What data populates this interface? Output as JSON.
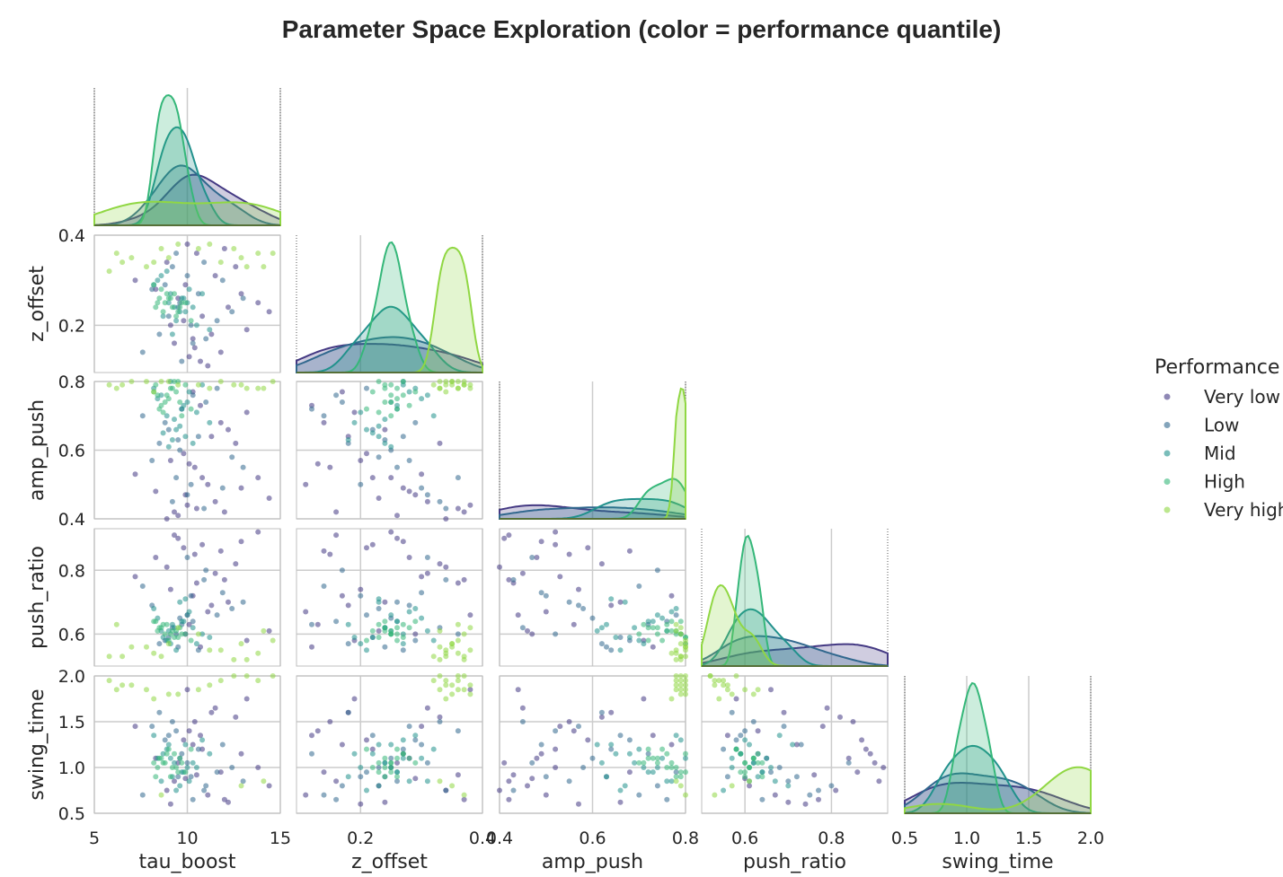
{
  "chart_data": {
    "type": "scatter",
    "kind": "pairplot-corner",
    "title": "Parameter Space Exploration (color = performance quantile)",
    "variables": [
      {
        "name": "tau_boost",
        "lim": [
          5,
          15
        ],
        "ticks": [
          5,
          10,
          15
        ],
        "tick_labels": [
          "5",
          "10",
          "15"
        ]
      },
      {
        "name": "z_offset",
        "lim": [
          0.095,
          0.4
        ],
        "ticks": [
          0.2,
          0.4
        ],
        "tick_labels": [
          "0.2",
          "0.4"
        ]
      },
      {
        "name": "amp_push",
        "lim": [
          0.4,
          0.8
        ],
        "ticks": [
          0.4,
          0.6,
          0.8
        ],
        "tick_labels": [
          "0.4",
          "0.6",
          "0.8"
        ]
      },
      {
        "name": "push_ratio",
        "lim": [
          0.5,
          0.93
        ],
        "ticks": [
          0.6,
          0.8
        ],
        "tick_labels": [
          "0.6",
          "0.8"
        ]
      },
      {
        "name": "swing_time",
        "lim": [
          0.5,
          2.0
        ],
        "ticks": [
          0.5,
          1.0,
          1.5,
          2.0
        ],
        "tick_labels": [
          "0.5",
          "1.0",
          "1.5",
          "2.0"
        ]
      }
    ],
    "y_ticks": {
      "z_offset": {
        "ticks": [
          0.2,
          0.4
        ],
        "labels": [
          "0.2",
          "0.4"
        ]
      },
      "amp_push": {
        "ticks": [
          0.4,
          0.6,
          0.8
        ],
        "labels": [
          "0.4",
          "0.6",
          "0.8"
        ]
      },
      "push_ratio": {
        "ticks": [
          0.6,
          0.8
        ],
        "labels": [
          "0.6",
          "0.8"
        ]
      },
      "swing_time": {
        "ticks": [
          0.5,
          1.0,
          1.5,
          2.0
        ],
        "labels": [
          "0.5",
          "1.0",
          "1.5",
          "2.0"
        ]
      }
    },
    "legend": {
      "title": "Performance",
      "placement": "right",
      "entries": [
        "Very low",
        "Low",
        "Mid",
        "High",
        "Very high"
      ],
      "colors": [
        "#443983",
        "#31688e",
        "#21918c",
        "#35b779",
        "#90d743"
      ]
    },
    "series": [
      {
        "name": "Very low",
        "points": [
          [
            10.8,
            0.22,
            0.52,
            0.88,
            1.2
          ],
          [
            11.5,
            0.31,
            0.45,
            0.79,
            1.65
          ],
          [
            9.3,
            0.16,
            0.42,
            0.91,
            0.85
          ],
          [
            12.2,
            0.24,
            0.66,
            0.7,
            0.62
          ],
          [
            10.1,
            0.13,
            0.56,
            0.63,
            1.4
          ],
          [
            8.3,
            0.28,
            0.48,
            0.84,
            1.1
          ],
          [
            13.2,
            0.19,
            0.71,
            0.58,
            1.75
          ],
          [
            10.5,
            0.36,
            0.43,
            0.76,
            0.92
          ],
          [
            9.8,
            0.21,
            0.59,
            0.87,
            1.3
          ],
          [
            11.1,
            0.11,
            0.5,
            0.67,
            0.7
          ],
          [
            12.6,
            0.33,
            0.62,
            0.82,
            1.55
          ],
          [
            9.5,
            0.26,
            0.41,
            0.9,
            1.05
          ],
          [
            10.3,
            0.17,
            0.77,
            0.72,
            1.25
          ],
          [
            14.4,
            0.23,
            0.46,
            0.61,
            0.8
          ],
          [
            7.2,
            0.3,
            0.53,
            0.78,
            1.45
          ],
          [
            11.8,
            0.14,
            0.68,
            0.86,
            0.95
          ],
          [
            10.0,
            0.38,
            0.44,
            0.66,
            1.85
          ],
          [
            9.1,
            0.2,
            0.57,
            0.74,
            0.6
          ],
          [
            12.9,
            0.27,
            0.49,
            0.89,
            1.15
          ],
          [
            10.7,
            0.12,
            0.73,
            0.56,
            1.35
          ],
          [
            8.9,
            0.34,
            0.4,
            0.81,
            0.75
          ],
          [
            11.3,
            0.18,
            0.64,
            0.69,
            1.6
          ],
          [
            13.8,
            0.25,
            0.52,
            0.92,
            1.0
          ],
          [
            9.9,
            0.29,
            0.47,
            0.6,
            0.88
          ],
          [
            10.4,
            0.15,
            0.55,
            0.85,
            1.5
          ],
          [
            12.0,
            0.37,
            0.42,
            0.77,
            0.65
          ]
        ]
      },
      {
        "name": "Low",
        "points": [
          [
            9.6,
            0.25,
            0.6,
            0.65,
            1.1
          ],
          [
            10.2,
            0.2,
            0.5,
            0.72,
            0.9
          ],
          [
            8.8,
            0.29,
            0.68,
            0.58,
            1.3
          ],
          [
            11.0,
            0.17,
            0.74,
            0.8,
            0.8
          ],
          [
            9.2,
            0.33,
            0.45,
            0.62,
            1.5
          ],
          [
            12.4,
            0.23,
            0.58,
            0.68,
            1.0
          ],
          [
            10.6,
            0.27,
            0.64,
            0.55,
            1.2
          ],
          [
            7.6,
            0.14,
            0.7,
            0.75,
            0.7
          ],
          [
            9.4,
            0.36,
            0.52,
            0.6,
            1.4
          ],
          [
            11.6,
            0.21,
            0.78,
            0.66,
            0.95
          ],
          [
            10.0,
            0.31,
            0.47,
            0.84,
            1.05
          ],
          [
            8.5,
            0.18,
            0.62,
            0.57,
            1.6
          ],
          [
            13.0,
            0.26,
            0.55,
            0.7,
            0.85
          ],
          [
            9.7,
            0.12,
            0.72,
            0.63,
            1.15
          ],
          [
            10.9,
            0.34,
            0.43,
            0.77,
            0.75
          ],
          [
            9.0,
            0.22,
            0.66,
            0.59,
            1.35
          ],
          [
            11.9,
            0.3,
            0.49,
            0.73,
            1.25
          ],
          [
            10.3,
            0.16,
            0.76,
            0.64,
            0.65
          ],
          [
            8.1,
            0.28,
            0.57,
            0.69,
            1.45
          ],
          [
            9.5,
            0.24,
            0.63,
            0.56,
            0.9
          ]
        ]
      },
      {
        "name": "Mid",
        "points": [
          [
            9.3,
            0.24,
            0.69,
            0.62,
            1.05
          ],
          [
            9.8,
            0.26,
            0.73,
            0.64,
            0.95
          ],
          [
            8.7,
            0.22,
            0.65,
            0.59,
            1.15
          ],
          [
            10.1,
            0.28,
            0.77,
            0.67,
            0.85
          ],
          [
            9.0,
            0.25,
            0.61,
            0.61,
            1.25
          ],
          [
            10.5,
            0.2,
            0.71,
            0.57,
            1.0
          ],
          [
            8.4,
            0.3,
            0.75,
            0.65,
            1.1
          ],
          [
            9.6,
            0.23,
            0.67,
            0.7,
            0.8
          ],
          [
            10.8,
            0.27,
            0.79,
            0.6,
            1.3
          ],
          [
            9.2,
            0.18,
            0.63,
            0.63,
            0.9
          ],
          [
            8.9,
            0.32,
            0.7,
            0.58,
            1.2
          ],
          [
            10.0,
            0.25,
            0.74,
            0.66,
            1.0
          ],
          [
            9.4,
            0.21,
            0.66,
            0.55,
            0.75
          ],
          [
            8.2,
            0.29,
            0.78,
            0.68,
            1.35
          ],
          [
            10.3,
            0.24,
            0.62,
            0.62,
            1.05
          ],
          [
            9.7,
            0.26,
            0.72,
            0.64,
            0.95
          ],
          [
            11.2,
            0.19,
            0.68,
            0.59,
            1.15
          ],
          [
            8.6,
            0.31,
            0.76,
            0.61,
            0.85
          ],
          [
            9.9,
            0.23,
            0.64,
            0.71,
            1.25
          ],
          [
            9.1,
            0.27,
            0.8,
            0.57,
            1.1
          ]
        ]
      },
      {
        "name": "High",
        "points": [
          [
            8.8,
            0.25,
            0.74,
            0.6,
            1.05
          ],
          [
            9.2,
            0.24,
            0.78,
            0.61,
            1.0
          ],
          [
            8.5,
            0.26,
            0.72,
            0.62,
            1.1
          ],
          [
            9.5,
            0.23,
            0.8,
            0.59,
            0.95
          ],
          [
            8.9,
            0.27,
            0.76,
            0.63,
            1.15
          ],
          [
            9.7,
            0.25,
            0.7,
            0.6,
            1.05
          ],
          [
            8.3,
            0.24,
            0.79,
            0.64,
            0.9
          ],
          [
            9.0,
            0.26,
            0.75,
            0.58,
            1.2
          ],
          [
            9.4,
            0.22,
            0.77,
            0.61,
            1.0
          ],
          [
            8.6,
            0.28,
            0.73,
            0.62,
            1.1
          ],
          [
            9.9,
            0.25,
            0.79,
            0.6,
            0.95
          ],
          [
            8.7,
            0.23,
            0.71,
            0.63,
            1.05
          ],
          [
            9.3,
            0.27,
            0.8,
            0.59,
            1.15
          ],
          [
            8.4,
            0.25,
            0.76,
            0.61,
            1.0
          ],
          [
            9.6,
            0.24,
            0.74,
            0.62,
            1.1
          ],
          [
            9.1,
            0.26,
            0.78,
            0.6,
            0.9
          ],
          [
            10.2,
            0.21,
            0.72,
            0.58,
            1.2
          ],
          [
            8.2,
            0.29,
            0.77,
            0.64,
            1.05
          ]
        ]
      },
      {
        "name": "Very high",
        "points": [
          [
            6.5,
            0.34,
            0.79,
            0.53,
            1.9
          ],
          [
            13.8,
            0.36,
            0.78,
            0.54,
            1.95
          ],
          [
            7.8,
            0.33,
            0.8,
            0.56,
            1.85
          ],
          [
            12.5,
            0.37,
            0.79,
            0.52,
            2.0
          ],
          [
            9.0,
            0.35,
            0.8,
            0.57,
            1.8
          ],
          [
            11.2,
            0.38,
            0.78,
            0.55,
            1.9
          ],
          [
            5.8,
            0.32,
            0.79,
            0.53,
            1.95
          ],
          [
            14.6,
            0.36,
            0.8,
            0.58,
            2.0
          ],
          [
            8.2,
            0.34,
            0.77,
            0.54,
            1.75
          ],
          [
            10.6,
            0.37,
            0.79,
            0.6,
            1.85
          ],
          [
            7.0,
            0.35,
            0.8,
            0.56,
            1.9
          ],
          [
            13.2,
            0.33,
            0.78,
            0.52,
            2.0
          ],
          [
            9.5,
            0.38,
            0.79,
            0.62,
            1.8
          ],
          [
            11.8,
            0.34,
            0.8,
            0.55,
            1.95
          ],
          [
            6.2,
            0.36,
            0.78,
            0.63,
            1.85
          ],
          [
            12.9,
            0.35,
            0.79,
            0.57,
            0.8
          ],
          [
            8.6,
            0.37,
            0.8,
            0.53,
            0.7
          ],
          [
            14.1,
            0.33,
            0.78,
            0.61,
            0.85
          ]
        ]
      }
    ]
  }
}
